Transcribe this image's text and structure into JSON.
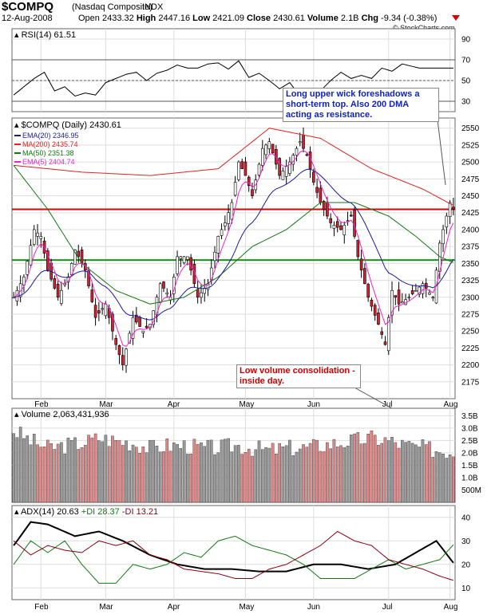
{
  "header": {
    "symbol": "$COMPQ",
    "name": "(Nasdaq Composite)",
    "exchange": "INDX",
    "date": "12-Aug-2008",
    "open_label": "Open",
    "open": "2433.32",
    "high_label": "High",
    "high": "2447.16",
    "low_label": "Low",
    "low": "2421.09",
    "close_label": "Close",
    "close": "2430.61",
    "volume_label": "Volume",
    "volume": "2.1B",
    "chg_label": "Chg",
    "chg": "-9.34 (-0.38%)",
    "watermark": "© StockCharts.com"
  },
  "colors": {
    "up": "#ffffff",
    "down": "#cc2233",
    "ema20": "#1a1a99",
    "ma200": "#dd2222",
    "ma50": "#117711",
    "ema5": "#ee22cc",
    "hline_red": "#dd0000",
    "hline_green": "#119911",
    "vol_up": "#999999",
    "vol_down": "#dd8888",
    "adx": "#000000",
    "plus_di": "#117711",
    "minus_di": "#880011"
  },
  "annotations": {
    "top": "Long upper wick foreshadows a short-term top.  Also 200 DMA acting as resistance.",
    "bottom": "Low volume consolidation - inside day."
  },
  "chart_data": [
    {
      "type": "line",
      "panel": "rsi",
      "label": "RSI(14) 61.51",
      "ylim": [
        20,
        100
      ],
      "yticks": [
        30,
        50,
        70,
        90
      ],
      "bands": [
        30,
        50,
        70
      ],
      "anchors": [
        [
          0,
          36
        ],
        [
          3,
          44
        ],
        [
          6,
          52
        ],
        [
          9,
          58
        ],
        [
          12,
          40
        ],
        [
          15,
          44
        ],
        [
          18,
          35
        ],
        [
          21,
          38
        ],
        [
          24,
          36
        ],
        [
          27,
          48
        ],
        [
          30,
          52
        ],
        [
          33,
          56
        ],
        [
          36,
          58
        ],
        [
          39,
          50
        ],
        [
          42,
          57
        ],
        [
          45,
          60
        ],
        [
          48,
          65
        ],
        [
          51,
          62
        ],
        [
          54,
          62
        ],
        [
          57,
          66
        ],
        [
          60,
          67
        ],
        [
          63,
          61
        ],
        [
          66,
          69
        ],
        [
          69,
          53
        ],
        [
          72,
          57
        ],
        [
          75,
          50
        ],
        [
          78,
          42
        ],
        [
          81,
          48
        ],
        [
          84,
          35
        ],
        [
          87,
          34
        ],
        [
          90,
          40
        ],
        [
          93,
          50
        ],
        [
          96,
          58
        ],
        [
          99,
          52
        ],
        [
          102,
          55
        ],
        [
          105,
          52
        ],
        [
          108,
          62
        ],
        [
          111,
          59
        ],
        [
          114,
          66
        ],
        [
          119,
          62
        ]
      ]
    },
    {
      "type": "candlestick",
      "panel": "price",
      "label": "$COMPQ (Daily) 2430.61",
      "ylim": [
        2150,
        2565
      ],
      "yticks": [
        2175,
        2200,
        2225,
        2250,
        2275,
        2300,
        2325,
        2350,
        2375,
        2400,
        2425,
        2450,
        2475,
        2500,
        2525,
        2550
      ],
      "xticks": [
        "Feb",
        "Mar",
        "Apr",
        "May",
        "Jun",
        "Jul",
        "Aug"
      ],
      "xtick_index": [
        8,
        27,
        47,
        68,
        88,
        110,
        128
      ],
      "close_anchors": [
        [
          0,
          2300
        ],
        [
          3,
          2330
        ],
        [
          6,
          2400
        ],
        [
          8,
          2390
        ],
        [
          10,
          2340
        ],
        [
          13,
          2300
        ],
        [
          16,
          2330
        ],
        [
          18,
          2370
        ],
        [
          21,
          2340
        ],
        [
          24,
          2270
        ],
        [
          27,
          2290
        ],
        [
          30,
          2230
        ],
        [
          32,
          2200
        ],
        [
          35,
          2270
        ],
        [
          38,
          2250
        ],
        [
          40,
          2260
        ],
        [
          43,
          2320
        ],
        [
          46,
          2300
        ],
        [
          48,
          2360
        ],
        [
          51,
          2360
        ],
        [
          54,
          2300
        ],
        [
          57,
          2320
        ],
        [
          60,
          2390
        ],
        [
          62,
          2410
        ],
        [
          64,
          2440
        ],
        [
          66,
          2500
        ],
        [
          68,
          2480
        ],
        [
          70,
          2450
        ],
        [
          73,
          2520
        ],
        [
          75,
          2530
        ],
        [
          78,
          2480
        ],
        [
          81,
          2500
        ],
        [
          84,
          2530
        ],
        [
          86,
          2510
        ],
        [
          88,
          2470
        ],
        [
          90,
          2440
        ],
        [
          93,
          2410
        ],
        [
          96,
          2400
        ],
        [
          99,
          2420
        ],
        [
          101,
          2360
        ],
        [
          104,
          2300
        ],
        [
          107,
          2260
        ],
        [
          109,
          2230
        ],
        [
          111,
          2310
        ],
        [
          113,
          2290
        ],
        [
          116,
          2300
        ],
        [
          118,
          2310
        ],
        [
          120,
          2320
        ],
        [
          123,
          2300
        ],
        [
          125,
          2380
        ],
        [
          127,
          2420
        ],
        [
          128,
          2440
        ],
        [
          129,
          2430.61
        ]
      ],
      "last": {
        "open": 2433.32,
        "high": 2447.16,
        "low": 2421.09,
        "close": 2430.61
      },
      "legend": [
        {
          "name": "EMA(20)",
          "value": "2346.95",
          "color": "#1a1a99"
        },
        {
          "name": "MA(200)",
          "value": "2435.74",
          "color": "#dd2222"
        },
        {
          "name": "MA(50)",
          "value": "2351.38",
          "color": "#117711"
        },
        {
          "name": "EMA(5)",
          "value": "2404.74",
          "color": "#ee22cc"
        }
      ],
      "hlines": [
        {
          "value": 2430,
          "color": "#dd0000"
        },
        {
          "value": 2355,
          "color": "#119911"
        }
      ],
      "ma200_anchors": [
        [
          0,
          2495
        ],
        [
          20,
          2485
        ],
        [
          40,
          2480
        ],
        [
          60,
          2490
        ],
        [
          75,
          2550
        ],
        [
          90,
          2535
        ],
        [
          105,
          2490
        ],
        [
          120,
          2460
        ],
        [
          129,
          2435.74
        ]
      ],
      "ma50_anchors": [
        [
          0,
          2495
        ],
        [
          10,
          2430
        ],
        [
          20,
          2350
        ],
        [
          30,
          2310
        ],
        [
          40,
          2290
        ],
        [
          50,
          2300
        ],
        [
          60,
          2330
        ],
        [
          70,
          2375
        ],
        [
          80,
          2400
        ],
        [
          90,
          2440
        ],
        [
          100,
          2440
        ],
        [
          110,
          2420
        ],
        [
          118,
          2390
        ],
        [
          125,
          2360
        ],
        [
          129,
          2351.38
        ]
      ]
    },
    {
      "type": "bar",
      "panel": "volume",
      "label": "Volume 2,063,431,936",
      "ylim": [
        0,
        3.8
      ],
      "yticks": [
        "3.5B",
        "3.0B",
        "2.5B",
        "2.0B",
        "1.5B",
        "1.0B",
        "500M"
      ],
      "ytick_values": [
        3.5,
        3.0,
        2.5,
        2.0,
        1.5,
        1.0,
        0.5
      ],
      "anchors": [
        [
          0,
          2.9
        ],
        [
          5,
          2.5
        ],
        [
          10,
          2.2
        ],
        [
          15,
          2.3
        ],
        [
          20,
          2.4
        ],
        [
          25,
          2.6
        ],
        [
          30,
          2.5
        ],
        [
          35,
          2.4
        ],
        [
          40,
          2.2
        ],
        [
          45,
          2.3
        ],
        [
          50,
          2.3
        ],
        [
          55,
          2.2
        ],
        [
          60,
          2.2
        ],
        [
          65,
          2.3
        ],
        [
          70,
          2.2
        ],
        [
          75,
          2.1
        ],
        [
          80,
          2.2
        ],
        [
          85,
          2.2
        ],
        [
          90,
          2.3
        ],
        [
          95,
          2.4
        ],
        [
          100,
          2.5
        ],
        [
          105,
          2.6
        ],
        [
          110,
          2.5
        ],
        [
          115,
          2.3
        ],
        [
          120,
          2.2
        ],
        [
          125,
          2.1
        ],
        [
          129,
          2.06
        ]
      ]
    },
    {
      "type": "line",
      "panel": "adx",
      "label": "ADX(14) 20.63 +DI 28.37 -DI 13.21",
      "label_parts": [
        "ADX(14) 20.63",
        "+DI 28.37",
        "-DI 13.21"
      ],
      "ylim": [
        5,
        45
      ],
      "yticks": [
        10,
        20,
        30,
        40
      ],
      "series": [
        {
          "name": "ADX(14)",
          "color": "#000000",
          "anchors": [
            [
              0,
              28
            ],
            [
              5,
              38
            ],
            [
              10,
              37
            ],
            [
              18,
              32
            ],
            [
              25,
              34
            ],
            [
              32,
              30
            ],
            [
              40,
              24
            ],
            [
              48,
              20
            ],
            [
              56,
              18
            ],
            [
              64,
              18
            ],
            [
              72,
              17
            ],
            [
              80,
              17
            ],
            [
              88,
              20
            ],
            [
              96,
              20
            ],
            [
              104,
              18
            ],
            [
              112,
              20
            ],
            [
              118,
              25
            ],
            [
              124,
              30
            ],
            [
              129,
              20.63
            ]
          ]
        },
        {
          "name": "+DI",
          "color": "#117711",
          "anchors": [
            [
              0,
              20
            ],
            [
              5,
              30
            ],
            [
              10,
              25
            ],
            [
              15,
              30
            ],
            [
              20,
              20
            ],
            [
              25,
              12
            ],
            [
              30,
              12
            ],
            [
              35,
              20
            ],
            [
              40,
              18
            ],
            [
              45,
              20
            ],
            [
              50,
              25
            ],
            [
              55,
              23
            ],
            [
              60,
              30
            ],
            [
              65,
              32
            ],
            [
              70,
              28
            ],
            [
              75,
              26
            ],
            [
              80,
              24
            ],
            [
              85,
              20
            ],
            [
              90,
              14
            ],
            [
              95,
              14
            ],
            [
              100,
              14
            ],
            [
              105,
              18
            ],
            [
              110,
              22
            ],
            [
              115,
              18
            ],
            [
              120,
              20
            ],
            [
              125,
              22
            ],
            [
              129,
              28.37
            ]
          ]
        },
        {
          "name": "-DI",
          "color": "#880011",
          "anchors": [
            [
              0,
              30
            ],
            [
              5,
              24
            ],
            [
              10,
              28
            ],
            [
              15,
              26
            ],
            [
              20,
              25
            ],
            [
              25,
              30
            ],
            [
              30,
              28
            ],
            [
              35,
              30
            ],
            [
              40,
              24
            ],
            [
              45,
              22
            ],
            [
              50,
              18
            ],
            [
              55,
              17
            ],
            [
              60,
              16
            ],
            [
              65,
              14
            ],
            [
              70,
              14
            ],
            [
              75,
              18
            ],
            [
              80,
              20
            ],
            [
              85,
              24
            ],
            [
              90,
              28
            ],
            [
              95,
              34
            ],
            [
              100,
              30
            ],
            [
              105,
              28
            ],
            [
              110,
              22
            ],
            [
              115,
              20
            ],
            [
              120,
              18
            ],
            [
              125,
              15
            ],
            [
              129,
              13.21
            ]
          ]
        }
      ]
    }
  ]
}
